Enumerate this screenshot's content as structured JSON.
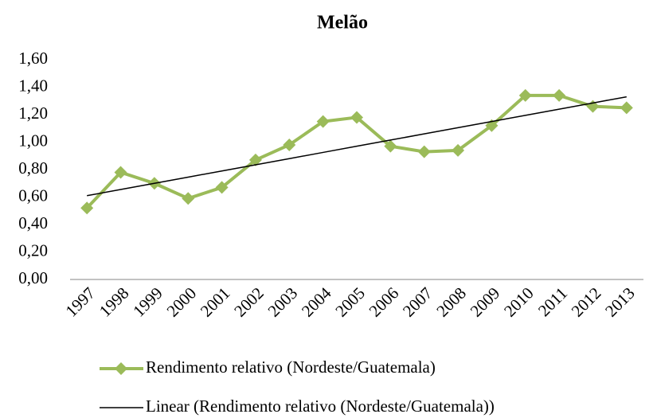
{
  "chart_data": {
    "type": "line",
    "title": "Melão",
    "categories": [
      "1997",
      "1998",
      "1999",
      "2000",
      "2001",
      "2002",
      "2003",
      "2004",
      "2005",
      "2006",
      "2007",
      "2008",
      "2009",
      "2010",
      "2011",
      "2012",
      "2013"
    ],
    "series": [
      {
        "name": "Rendimento relativo (Nordeste/Guatemala)",
        "color": "#9bbb59",
        "marker": "diamond",
        "values": [
          0.52,
          0.78,
          0.7,
          0.59,
          0.67,
          0.87,
          0.98,
          1.15,
          1.18,
          0.97,
          0.93,
          0.94,
          1.12,
          1.34,
          1.34,
          1.26,
          1.25
        ]
      },
      {
        "name": "Linear (Rendimento relativo (Nordeste/Guatemala))",
        "color": "#000000",
        "values": [
          0.61,
          0.655,
          0.7,
          0.745,
          0.79,
          0.835,
          0.88,
          0.925,
          0.97,
          1.015,
          1.06,
          1.105,
          1.15,
          1.195,
          1.24,
          1.285,
          1.33
        ]
      }
    ],
    "ylim": [
      0,
      1.6
    ],
    "yticks": [
      {
        "value": 0,
        "label": "0,00"
      },
      {
        "value": 0.2,
        "label": "0,20"
      },
      {
        "value": 0.4,
        "label": "0,40"
      },
      {
        "value": 0.6,
        "label": "0,60"
      },
      {
        "value": 0.8,
        "label": "0,80"
      },
      {
        "value": 1.0,
        "label": "1,00"
      },
      {
        "value": 1.2,
        "label": "1,20"
      },
      {
        "value": 1.4,
        "label": "1,40"
      },
      {
        "value": 1.6,
        "label": "1,60"
      }
    ],
    "grid": false,
    "legend": "bottom"
  }
}
